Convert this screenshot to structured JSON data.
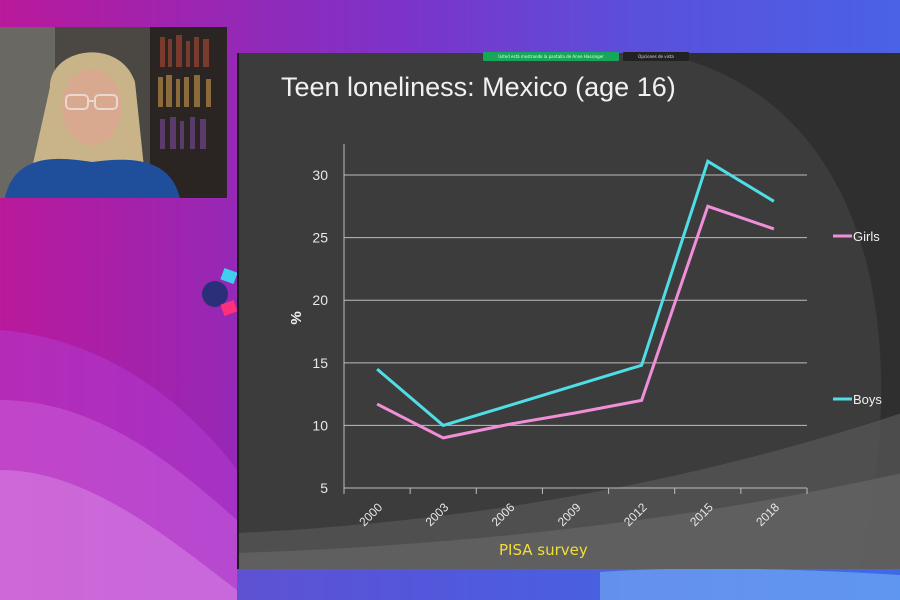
{
  "share_bar": {
    "sharing_label": "Usted está mostrando la pantalla de Anne Hassinger",
    "options_label": "Opciones de vista"
  },
  "slide": {
    "title": "Teen loneliness: Mexico (age 16)",
    "footer": "PISA survey"
  },
  "colors": {
    "girls": "#f08fd8",
    "boys": "#4fdde6",
    "background_accent": "#7c33c9"
  },
  "chart_data": {
    "type": "line",
    "title": "Teen loneliness: Mexico (age 16)",
    "xlabel": "",
    "ylabel": "%",
    "categories": [
      "2000",
      "2003",
      "2006",
      "2009",
      "2012",
      "2015",
      "2018"
    ],
    "yticks": [
      "5",
      "10",
      "15",
      "20",
      "25",
      "30"
    ],
    "ylim": [
      5,
      32
    ],
    "grid": true,
    "legend_placement": "right",
    "series": [
      {
        "name": "Girls",
        "color": "#f08fd8",
        "values": [
          11.7,
          9.0,
          10.1,
          11.0,
          12.0,
          27.5,
          25.7
        ]
      },
      {
        "name": "Boys",
        "color": "#4fdde6",
        "values": [
          14.5,
          10.0,
          11.6,
          13.2,
          14.8,
          31.1,
          27.9
        ]
      }
    ]
  }
}
